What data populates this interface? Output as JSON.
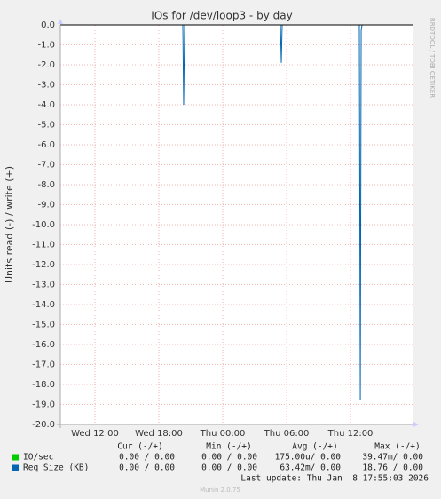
{
  "chart_data": {
    "type": "line",
    "title": "IOs for /dev/loop3 - by day",
    "y_label": "Units read (-) / write (+)",
    "side_label": "RRDTOOL / TOBI OETIKER",
    "x": [
      8.75,
      20.25,
      20.33,
      20.42,
      29.42,
      29.5,
      29.58,
      36.83,
      36.92,
      37.0,
      37.08,
      41.83
    ],
    "xlim": [
      8.75,
      41.83
    ],
    "xticks": [
      {
        "value": 12,
        "label": "Wed 12:00"
      },
      {
        "value": 18,
        "label": "Wed 18:00"
      },
      {
        "value": 24,
        "label": "Thu 00:00"
      },
      {
        "value": 30,
        "label": "Thu 06:00"
      },
      {
        "value": 36,
        "label": "Thu 12:00"
      }
    ],
    "ylim": [
      -20,
      0
    ],
    "yticks": [
      {
        "value": 0,
        "label": "0.0"
      },
      {
        "value": -1,
        "label": "-1.0"
      },
      {
        "value": -2,
        "label": "-2.0"
      },
      {
        "value": -3,
        "label": "-3.0"
      },
      {
        "value": -4,
        "label": "-4.0"
      },
      {
        "value": -5,
        "label": "-5.0"
      },
      {
        "value": -6,
        "label": "-6.0"
      },
      {
        "value": -7,
        "label": "-7.0"
      },
      {
        "value": -8,
        "label": "-8.0"
      },
      {
        "value": -9,
        "label": "-9.0"
      },
      {
        "value": -10,
        "label": "-10.0"
      },
      {
        "value": -11,
        "label": "-11.0"
      },
      {
        "value": -12,
        "label": "-12.0"
      },
      {
        "value": -13,
        "label": "-13.0"
      },
      {
        "value": -14,
        "label": "-14.0"
      },
      {
        "value": -15,
        "label": "-15.0"
      },
      {
        "value": -16,
        "label": "-16.0"
      },
      {
        "value": -17,
        "label": "-17.0"
      },
      {
        "value": -18,
        "label": "-18.0"
      },
      {
        "value": -19,
        "label": "-19.0"
      },
      {
        "value": -20,
        "label": "-20.0"
      }
    ],
    "grid": true,
    "series": [
      {
        "name": "IO/sec",
        "color": "#00cc00",
        "values": [
          0,
          0,
          0,
          0,
          0,
          0,
          0,
          0,
          0,
          0,
          0,
          0
        ]
      },
      {
        "name": "Req Size (KB)",
        "color": "#0066b3",
        "values": [
          0,
          0,
          -4.0,
          0,
          0,
          -1.9,
          0,
          0,
          -18.8,
          -0.3,
          0,
          0
        ]
      }
    ],
    "summary": {
      "headers": [
        "Cur (-/+)",
        "Min (-/+)",
        "Avg (-/+)",
        "Max (-/+)"
      ],
      "rows": [
        [
          "0.00 / 0.00",
          "0.00 / 0.00",
          "175.00u/ 0.00",
          "39.47m/ 0.00"
        ],
        [
          "0.00 / 0.00",
          "0.00 / 0.00",
          "63.42m/ 0.00",
          "18.76 / 0.00"
        ]
      ],
      "last_update": "Last update: Thu Jan  8 17:55:03 2026",
      "footer": "Munin 2.0.75"
    }
  }
}
